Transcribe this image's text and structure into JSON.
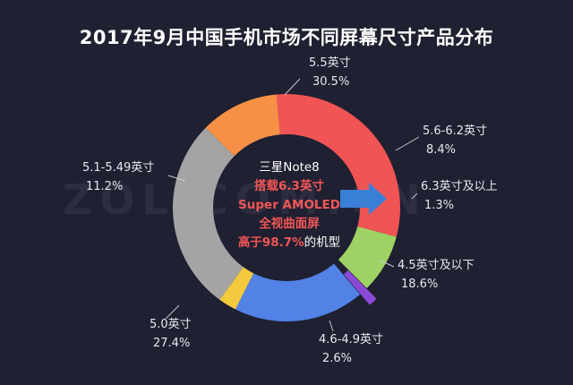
{
  "chart_data": {
    "type": "pie",
    "title": "2017年9月中国手机市场不同屏幕尺寸产品分布",
    "slices": [
      {
        "label": "5.5英寸",
        "value": 30.5,
        "value_label": "30.5%",
        "color": "#f05454"
      },
      {
        "label": "5.6-6.2英寸",
        "value": 8.4,
        "value_label": "8.4%",
        "color": "#9fd264"
      },
      {
        "label": "6.3英寸及以上",
        "value": 1.3,
        "value_label": "1.3%",
        "color": "#8a4ad6"
      },
      {
        "label": "4.5英寸及以下",
        "value": 18.6,
        "value_label": "18.6%",
        "color": "#5282e6"
      },
      {
        "label": "4.6-4.9英寸",
        "value": 2.6,
        "value_label": "2.6%",
        "color": "#f3c93e"
      },
      {
        "label": "5.0英寸",
        "value": 27.4,
        "value_label": "27.4%",
        "color": "#a4a4a4"
      },
      {
        "label": "5.1-5.49英寸",
        "value": 11.2,
        "value_label": "11.2%",
        "color": "#f59046"
      }
    ],
    "center_note": {
      "line1": "三星Note8",
      "line2": "搭载6.3英寸",
      "line3": "Super AMOLED",
      "line4": "全视曲面屏",
      "line5_highlight": "高于98.7%",
      "line5_rest": "的机型"
    },
    "watermark": "ZOL.COM.CN"
  }
}
